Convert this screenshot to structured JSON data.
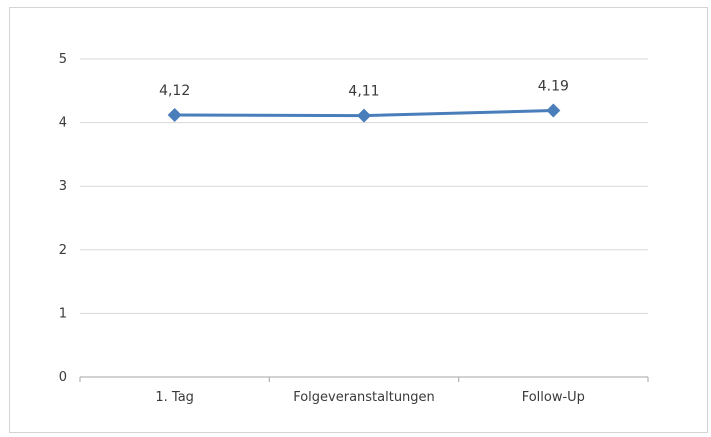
{
  "chart_data": {
    "type": "line",
    "title": "",
    "xlabel": "",
    "ylabel": "",
    "categories": [
      "1. Tag",
      "Folgeveranstaltungen",
      "Follow-Up"
    ],
    "series": [
      {
        "values": [
          4.12,
          4.11,
          4.19
        ],
        "data_labels": [
          "4,12",
          "4,11",
          "4.19"
        ],
        "color": "#4a7ebb",
        "marker": "diamond"
      }
    ],
    "ylim": [
      0,
      5
    ],
    "yticks": [
      "0",
      "1",
      "2",
      "3",
      "4",
      "5"
    ],
    "grid": true,
    "legend": "none"
  }
}
